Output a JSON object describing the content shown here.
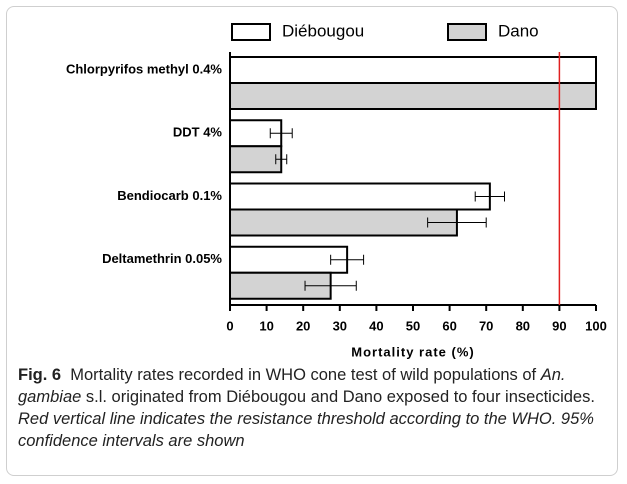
{
  "chart_data": {
    "type": "hbar-grouped",
    "categories": [
      "Chlorpyrifos methyl  0.4%",
      "DDT 4%",
      "Bendiocarb 0.1%",
      "Deltamethrin 0.05%"
    ],
    "series": [
      {
        "name": "Diébougou",
        "color": "#ffffff",
        "values": [
          100,
          14,
          71,
          32
        ],
        "errors": [
          0,
          3,
          4,
          4.5
        ]
      },
      {
        "name": "Dano",
        "color": "#d3d3d3",
        "values": [
          100,
          14,
          62,
          27.5
        ],
        "errors": [
          0,
          1.5,
          8,
          7
        ]
      }
    ],
    "xlabel": "Mortality rate (%)",
    "xlim": [
      0,
      100
    ],
    "xticks": [
      0,
      10,
      20,
      30,
      40,
      50,
      60,
      70,
      80,
      90,
      100
    ],
    "threshold": 90,
    "threshold_color": "#e02020",
    "legend": "top"
  },
  "caption": {
    "label": "Fig. 6",
    "segments": [
      {
        "text": "Mortality rates recorded in WHO cone test of wild populations of ",
        "italic": false
      },
      {
        "text": "An. gambiae",
        "italic": true
      },
      {
        "text": " s.l. originated from Diébougou and Dano exposed to four insecticides. ",
        "italic": false
      },
      {
        "text": "Red vertical line indicates the resistance threshold according to the WHO. 95% confidence intervals are shown",
        "italic": true
      }
    ]
  }
}
